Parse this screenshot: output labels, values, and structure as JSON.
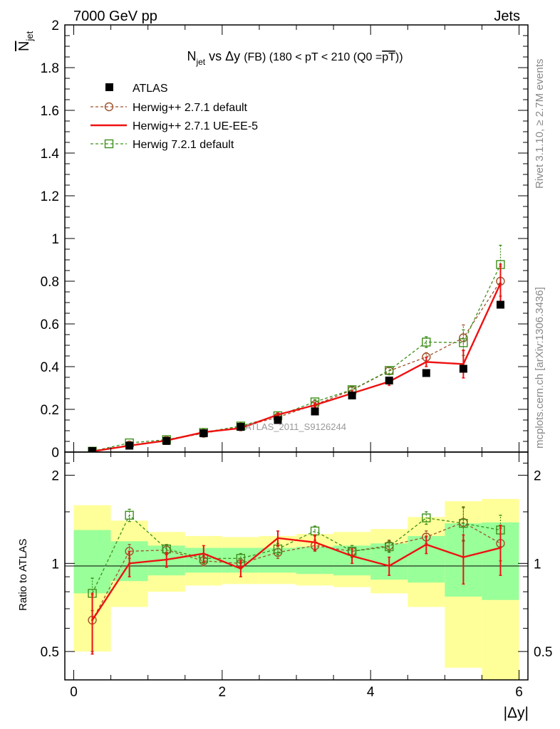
{
  "header": {
    "left": "7000 GeV pp",
    "right": "Jets"
  },
  "side_labels": {
    "rivet": "Rivet 3.1.10, ≥ 2.7M events",
    "mcplots": "mcplots.cern.ch [arXiv:1306.3436]"
  },
  "watermark": "ATLAS_2011_S9126244",
  "colors": {
    "atlas": "#000000",
    "herwig_default": "#a0522d",
    "herwig_ueee5": "#ee1111",
    "herwig7": "#3d8f1a",
    "band_yellow": "#ffff99",
    "band_green": "#99ff99"
  },
  "chart_data": [
    {
      "type": "scatter",
      "title_parts": {
        "n": "N",
        "jet": "jet",
        "vs": "vs",
        "dy": "Δy",
        "rest": "(FB) (180 < pT < 210 (Q0 =",
        "pt": "pT",
        "close": "))"
      },
      "ylabel_n": "N",
      "ylabel_sub": "jet",
      "xlim": [
        -0.12,
        6.12
      ],
      "ylim": [
        0,
        2
      ],
      "yticks": [
        0,
        0.2,
        0.4,
        0.6,
        0.8,
        1,
        1.2,
        1.4,
        1.6,
        1.8,
        2
      ],
      "ytick_labels": [
        "0",
        "0.2",
        "0.4",
        "0.6",
        "0.8",
        "1",
        "1.2",
        "1.4",
        "1.6",
        "1.8",
        "2"
      ],
      "x": [
        0.25,
        0.75,
        1.25,
        1.75,
        2.25,
        2.75,
        3.25,
        3.75,
        4.25,
        4.75,
        5.25,
        5.75
      ],
      "series": [
        {
          "name": "ATLAS",
          "values": [
            0.005,
            0.03,
            0.052,
            0.088,
            0.118,
            0.15,
            0.19,
            0.265,
            0.335,
            0.37,
            0.39,
            0.69
          ]
        },
        {
          "name": "Herwig++ 2.7.1 default",
          "values": [
            0.004,
            0.033,
            0.055,
            0.088,
            0.118,
            0.163,
            0.222,
            0.29,
            0.38,
            0.445,
            0.535,
            0.8
          ],
          "err": [
            0.001,
            0.003,
            0.004,
            0.005,
            0.006,
            0.008,
            0.01,
            0.013,
            0.016,
            0.02,
            0.06,
            0.07
          ]
        },
        {
          "name": "Herwig++ 2.7.1 UE-EE-5",
          "values": [
            0.003,
            0.03,
            0.054,
            0.093,
            0.112,
            0.175,
            0.22,
            0.275,
            0.33,
            0.422,
            0.412,
            0.79
          ],
          "err": [
            0.001,
            0.003,
            0.004,
            0.005,
            0.006,
            0.008,
            0.01,
            0.013,
            0.018,
            0.022,
            0.065,
            0.09
          ]
        },
        {
          "name": "Herwig 7.2.1 default",
          "values": [
            0.004,
            0.043,
            0.058,
            0.092,
            0.122,
            0.17,
            0.235,
            0.292,
            0.382,
            0.515,
            0.512,
            0.878
          ],
          "err": [
            0.001,
            0.003,
            0.004,
            0.005,
            0.006,
            0.008,
            0.01,
            0.013,
            0.016,
            0.025,
            0.06,
            0.09
          ]
        }
      ]
    },
    {
      "type": "scatter",
      "ylabel": "Ratio to ATLAS",
      "xlabel": "|Δy|",
      "xlim": [
        -0.12,
        6.12
      ],
      "ylim": [
        0.4,
        2.4
      ],
      "ylog": true,
      "yticks": [
        0.5,
        1,
        2
      ],
      "ytick_labels": [
        "0.5",
        "1",
        "2"
      ],
      "xticks": [
        0,
        2,
        4,
        6
      ],
      "xtick_labels": [
        "0",
        "2",
        "4",
        "6"
      ],
      "bin_edges": [
        0,
        0.5,
        1,
        1.5,
        2,
        2.5,
        3,
        3.5,
        4,
        4.5,
        5,
        5.5,
        6
      ],
      "band_yellow": {
        "lo": [
          0.5,
          0.71,
          0.8,
          0.84,
          0.85,
          0.85,
          0.84,
          0.83,
          0.79,
          0.71,
          0.44,
          0.38
        ],
        "hi": [
          1.58,
          1.4,
          1.28,
          1.24,
          1.23,
          1.24,
          1.26,
          1.28,
          1.31,
          1.44,
          1.63,
          1.66
        ]
      },
      "band_green": {
        "lo": [
          0.79,
          0.87,
          0.91,
          0.93,
          0.93,
          0.93,
          0.92,
          0.91,
          0.88,
          0.86,
          0.77,
          0.75
        ],
        "hi": [
          1.3,
          1.19,
          1.15,
          1.13,
          1.13,
          1.13,
          1.14,
          1.15,
          1.17,
          1.24,
          1.37,
          1.38
        ]
      },
      "x": [
        0.25,
        0.75,
        1.25,
        1.75,
        2.25,
        2.75,
        3.25,
        3.75,
        4.25,
        4.75,
        5.25,
        5.75
      ],
      "series": [
        {
          "name": "Herwig++ 2.7.1 default",
          "values": [
            0.64,
            1.1,
            1.11,
            1.02,
            1.0,
            1.09,
            1.15,
            1.1,
            1.15,
            1.23,
            1.38,
            1.17
          ],
          "err": [
            0.14,
            0.06,
            0.04,
            0.04,
            0.04,
            0.05,
            0.05,
            0.05,
            0.05,
            0.06,
            0.18,
            0.15
          ]
        },
        {
          "name": "Herwig++ 2.7.1 UE-EE-5",
          "values": [
            0.64,
            1.0,
            1.03,
            1.08,
            0.96,
            1.22,
            1.18,
            1.06,
            0.98,
            1.16,
            1.05,
            1.13
          ],
          "err": [
            0.15,
            0.1,
            0.06,
            0.07,
            0.06,
            0.07,
            0.07,
            0.06,
            0.07,
            0.08,
            0.2,
            0.22
          ]
        },
        {
          "name": "Herwig 7.2.1 default",
          "values": [
            0.79,
            1.46,
            1.12,
            1.04,
            1.04,
            1.12,
            1.29,
            1.1,
            1.14,
            1.43,
            1.37,
            1.3
          ],
          "err": [
            0.1,
            0.07,
            0.04,
            0.04,
            0.04,
            0.05,
            0.05,
            0.05,
            0.05,
            0.07,
            0.18,
            0.16
          ]
        }
      ]
    }
  ]
}
